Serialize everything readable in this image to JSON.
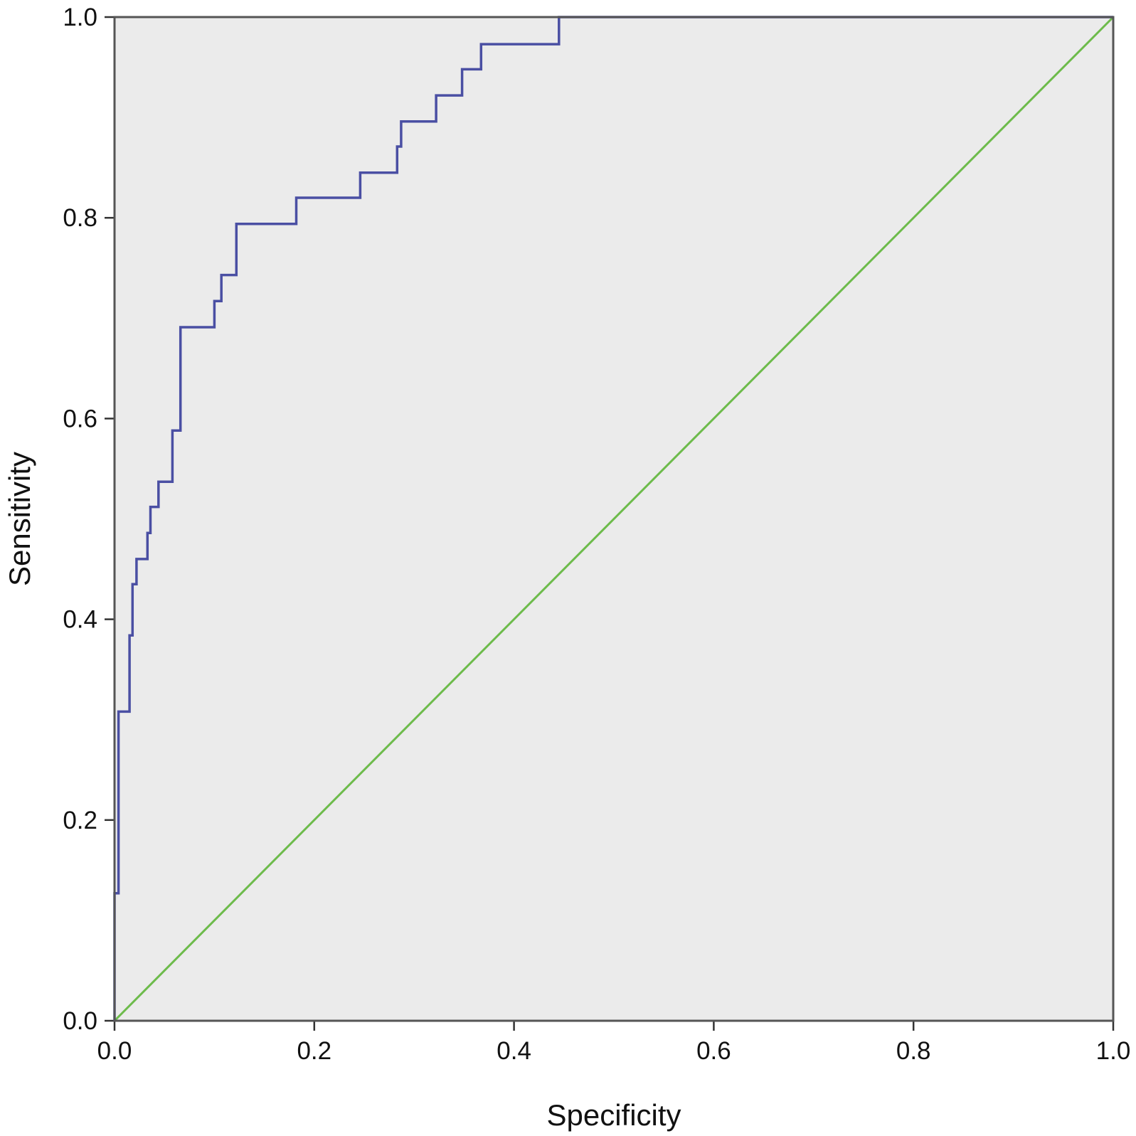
{
  "chart_data": {
    "type": "line",
    "title": "",
    "xlabel": "Specificity",
    "ylabel": "Sensitivity",
    "xlim": [
      0,
      1
    ],
    "ylim": [
      0,
      1
    ],
    "xticks": [
      "0.0",
      "0.2",
      "0.4",
      "0.6",
      "0.8",
      "1.0"
    ],
    "yticks": [
      "0.0",
      "0.2",
      "0.4",
      "0.6",
      "0.8",
      "1.0"
    ],
    "grid": false,
    "legend": "none",
    "colors": {
      "plot_background": "#ebebeb",
      "frame": "#555555",
      "roc_curve": "#4a4fa3",
      "reference_line": "#6dbb4b"
    },
    "series": [
      {
        "style": "step",
        "x": [
          0.0,
          0.0,
          0.004,
          0.004,
          0.015,
          0.015,
          0.018,
          0.018,
          0.022,
          0.022,
          0.033,
          0.033,
          0.036,
          0.036,
          0.044,
          0.044,
          0.058,
          0.058,
          0.066,
          0.066,
          0.1,
          0.1,
          0.107,
          0.107,
          0.122,
          0.122,
          0.182,
          0.182,
          0.246,
          0.246,
          0.283,
          0.283,
          0.287,
          0.287,
          0.322,
          0.322,
          0.348,
          0.348,
          0.367,
          0.367,
          0.445,
          0.445,
          1.0
        ],
        "y": [
          0.0,
          0.127,
          0.127,
          0.308,
          0.308,
          0.384,
          0.384,
          0.435,
          0.435,
          0.46,
          0.46,
          0.486,
          0.486,
          0.512,
          0.512,
          0.537,
          0.537,
          0.588,
          0.588,
          0.691,
          0.691,
          0.717,
          0.717,
          0.743,
          0.743,
          0.794,
          0.794,
          0.82,
          0.82,
          0.845,
          0.845,
          0.871,
          0.871,
          0.896,
          0.896,
          0.922,
          0.922,
          0.948,
          0.948,
          0.973,
          0.973,
          1.0,
          1.0
        ]
      },
      {
        "style": "line",
        "x": [
          0,
          1
        ],
        "y": [
          0,
          1
        ]
      }
    ]
  }
}
